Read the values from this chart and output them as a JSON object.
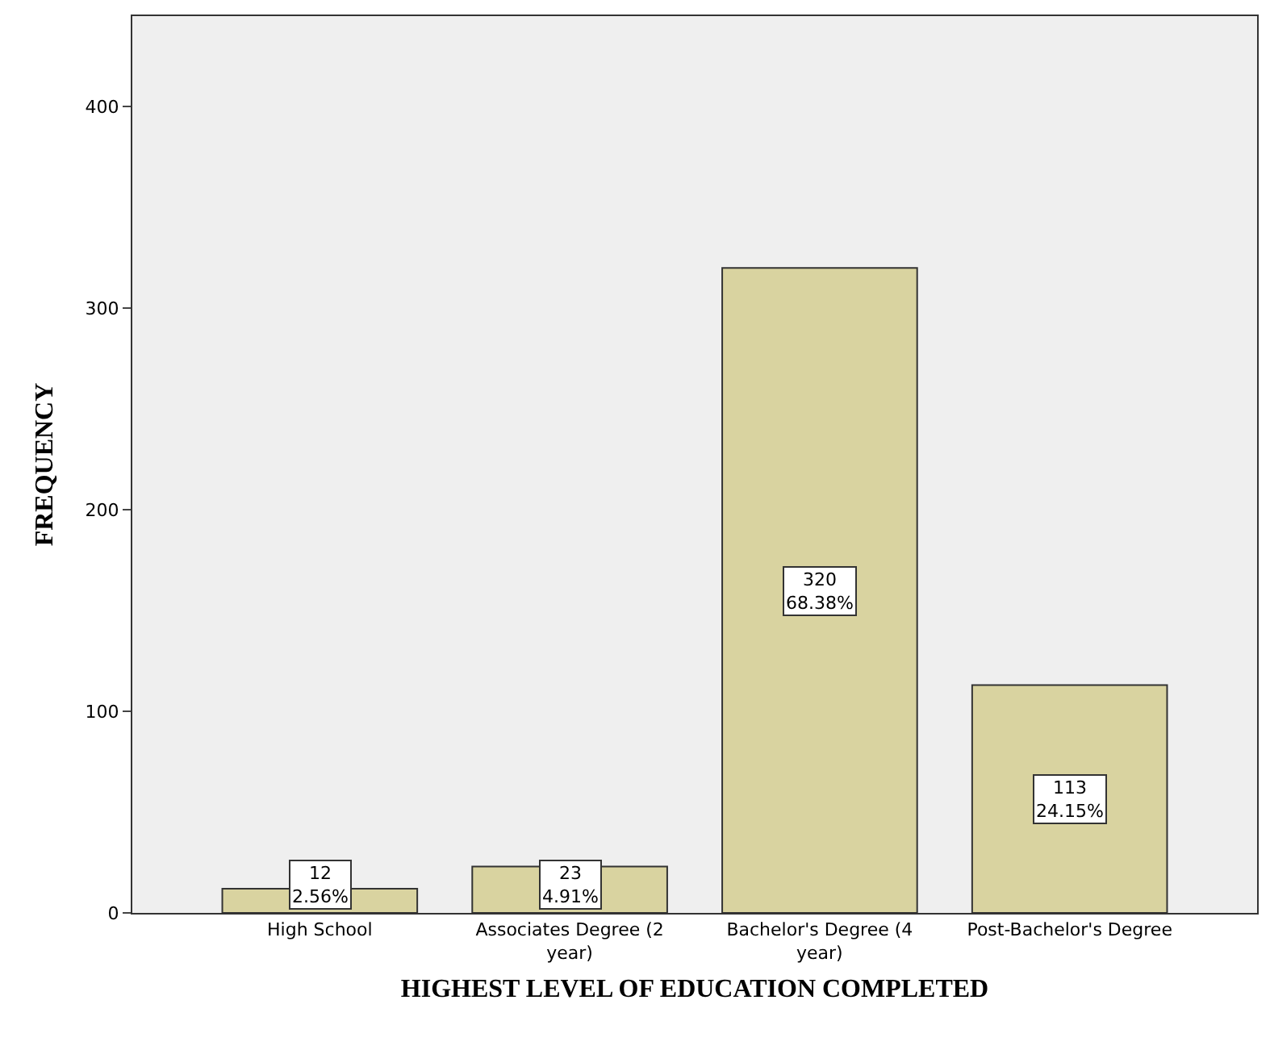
{
  "chart_data": {
    "type": "bar",
    "xlabel": "HIGHEST LEVEL OF EDUCATION COMPLETED",
    "ylabel": "FREQUENCY",
    "categories": [
      "High School",
      "Associates Degree (2 year)",
      "Bachelor's Degree (4 year)",
      "Post-Bachelor's Degree"
    ],
    "values": [
      12,
      23,
      320,
      113
    ],
    "value_labels": [
      "12\n2.56%",
      "23\n4.91%",
      "320\n68.38%",
      "113\n24.15%"
    ],
    "color": "#d9d3a0",
    "ylim": [
      0,
      445
    ],
    "yticks": [
      0,
      100,
      200,
      300,
      400
    ],
    "grid": false,
    "legend": false
  }
}
